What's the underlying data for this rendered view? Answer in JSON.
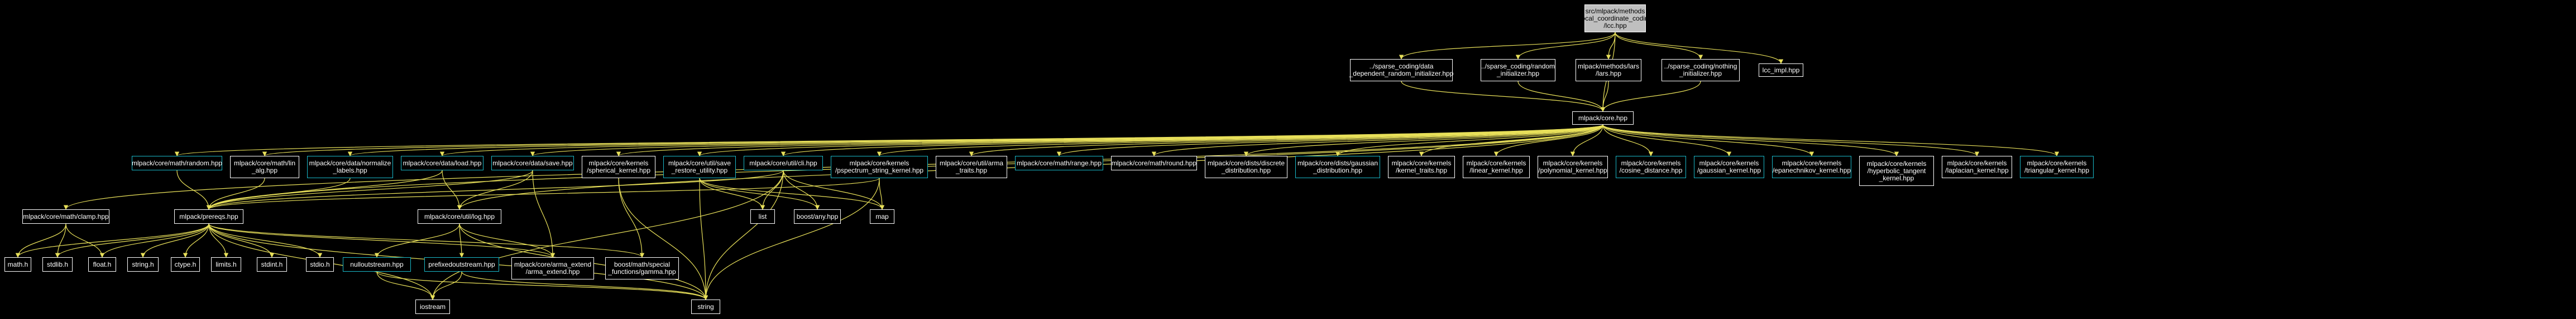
{
  "diagram": {
    "edge_color": "#e8e05a",
    "nodes": [
      {
        "id": "root",
        "label": "src/mlpack/methods\n/local_coordinate_coding\n/lcc.hpp",
        "style": "root"
      },
      {
        "id": "sc_data",
        "label": "../sparse_coding/data\n_dependent_random_initializer.hpp",
        "style": "white"
      },
      {
        "id": "sc_random",
        "label": "../sparse_coding/random\n_initializer.hpp",
        "style": "white"
      },
      {
        "id": "lars",
        "label": "mlpack/methods/lars\n/lars.hpp",
        "style": "white"
      },
      {
        "id": "sc_nothing",
        "label": "../sparse_coding/nothing\n_initializer.hpp",
        "style": "white"
      },
      {
        "id": "lcc_impl",
        "label": "lcc_impl.hpp",
        "style": "white"
      },
      {
        "id": "core",
        "label": "mlpack/core.hpp",
        "style": "white"
      },
      {
        "id": "random",
        "label": "mlpack/core/math/random.hpp",
        "style": "cyan"
      },
      {
        "id": "lin_alg",
        "label": "mlpack/core/math/lin\n_alg.hpp",
        "style": "white"
      },
      {
        "id": "normalize",
        "label": "mlpack/core/data/normalize\n_labels.hpp",
        "style": "cyan"
      },
      {
        "id": "load",
        "label": "mlpack/core/data/load.hpp",
        "style": "cyan"
      },
      {
        "id": "save",
        "label": "mlpack/core/data/save.hpp",
        "style": "cyan"
      },
      {
        "id": "spherical",
        "label": "mlpack/core/kernels\n/spherical_kernel.hpp",
        "style": "white"
      },
      {
        "id": "restore",
        "label": "mlpack/core/util/save\n_restore_utility.hpp",
        "style": "cyan"
      },
      {
        "id": "cli",
        "label": "mlpack/core/util/cli.hpp",
        "style": "cyan"
      },
      {
        "id": "pspectrum",
        "label": "mlpack/core/kernels\n/pspectrum_string_kernel.hpp",
        "style": "cyan"
      },
      {
        "id": "arma_traits",
        "label": "mlpack/core/util/arma\n_traits.hpp",
        "style": "white"
      },
      {
        "id": "range",
        "label": "mlpack/core/math/range.hpp",
        "style": "cyan"
      },
      {
        "id": "round",
        "label": "mlpack/core/math/round.hpp",
        "style": "white"
      },
      {
        "id": "discrete",
        "label": "mlpack/core/dists/discrete\n_distribution.hpp",
        "style": "white"
      },
      {
        "id": "gaussian_dist",
        "label": "mlpack/core/dists/gaussian\n_distribution.hpp",
        "style": "cyan"
      },
      {
        "id": "kernel_traits",
        "label": "mlpack/core/kernels\n/kernel_traits.hpp",
        "style": "white"
      },
      {
        "id": "linear",
        "label": "mlpack/core/kernels\n/linear_kernel.hpp",
        "style": "white"
      },
      {
        "id": "polynomial",
        "label": "mlpack/core/kernels\n/polynomial_kernel.hpp",
        "style": "white"
      },
      {
        "id": "cosine",
        "label": "mlpack/core/kernels\n/cosine_distance.hpp",
        "style": "cyan"
      },
      {
        "id": "gaussian_kernel",
        "label": "mlpack/core/kernels\n/gaussian_kernel.hpp",
        "style": "cyan"
      },
      {
        "id": "epanechnikov",
        "label": "mlpack/core/kernels\n/epanechnikov_kernel.hpp",
        "style": "cyan"
      },
      {
        "id": "tangent",
        "label": "mlpack/core/kernels\n/hyperbolic_tangent\n_kernel.hpp",
        "style": "white"
      },
      {
        "id": "laplacian",
        "label": "mlpack/core/kernels\n/laplacian_kernel.hpp",
        "style": "white"
      },
      {
        "id": "triangular",
        "label": "mlpack/core/kernels\n/triangular_kernel.hpp",
        "style": "cyan"
      },
      {
        "id": "clamp",
        "label": "mlpack/core/math/clamp.hpp",
        "style": "white"
      },
      {
        "id": "prereqs",
        "label": "mlpack/prereqs.hpp",
        "style": "white"
      },
      {
        "id": "log",
        "label": "mlpack/core/util/log.hpp",
        "style": "white"
      },
      {
        "id": "list",
        "label": "list",
        "style": "white"
      },
      {
        "id": "boost_any",
        "label": "boost/any.hpp",
        "style": "white"
      },
      {
        "id": "map",
        "label": "map",
        "style": "white"
      },
      {
        "id": "math_h",
        "label": "math.h",
        "style": "white"
      },
      {
        "id": "stdlib_h",
        "label": "stdlib.h",
        "style": "white"
      },
      {
        "id": "float_h",
        "label": "float.h",
        "style": "white"
      },
      {
        "id": "string_h",
        "label": "string.h",
        "style": "white"
      },
      {
        "id": "ctype_h",
        "label": "ctype.h",
        "style": "white"
      },
      {
        "id": "limits_h",
        "label": "limits.h",
        "style": "white"
      },
      {
        "id": "stdint_h",
        "label": "stdint.h",
        "style": "white"
      },
      {
        "id": "stdio_h",
        "label": "stdio.h",
        "style": "white"
      },
      {
        "id": "arma_extend",
        "label": "mlpack/core/arma_extend\n/arma_extend.hpp",
        "style": "white"
      },
      {
        "id": "boost_gamma",
        "label": "boost/math/special\n_functions/gamma.hpp",
        "style": "white"
      },
      {
        "id": "nulloutstream",
        "label": "nulloutstream.hpp",
        "style": "cyan"
      },
      {
        "id": "prefixedoutstream",
        "label": "prefixedoutstream.hpp",
        "style": "cyan"
      },
      {
        "id": "iostream",
        "label": "iostream",
        "style": "white"
      },
      {
        "id": "string",
        "label": "string",
        "style": "white"
      }
    ],
    "edges": [
      [
        "root",
        "sc_data"
      ],
      [
        "root",
        "sc_random"
      ],
      [
        "root",
        "lars"
      ],
      [
        "root",
        "sc_nothing"
      ],
      [
        "root",
        "lcc_impl"
      ],
      [
        "root",
        "core"
      ],
      [
        "sc_data",
        "core"
      ],
      [
        "sc_random",
        "core"
      ],
      [
        "lars",
        "core"
      ],
      [
        "sc_nothing",
        "core"
      ],
      [
        "core",
        "clamp"
      ],
      [
        "core",
        "random"
      ],
      [
        "core",
        "lin_alg"
      ],
      [
        "core",
        "normalize"
      ],
      [
        "core",
        "load"
      ],
      [
        "core",
        "save"
      ],
      [
        "core",
        "spherical"
      ],
      [
        "core",
        "restore"
      ],
      [
        "core",
        "cli"
      ],
      [
        "core",
        "pspectrum"
      ],
      [
        "core",
        "arma_traits"
      ],
      [
        "core",
        "range"
      ],
      [
        "core",
        "round"
      ],
      [
        "core",
        "discrete"
      ],
      [
        "core",
        "gaussian_dist"
      ],
      [
        "core",
        "kernel_traits"
      ],
      [
        "core",
        "linear"
      ],
      [
        "core",
        "polynomial"
      ],
      [
        "core",
        "cosine"
      ],
      [
        "core",
        "gaussian_kernel"
      ],
      [
        "core",
        "epanechnikov"
      ],
      [
        "core",
        "tangent"
      ],
      [
        "core",
        "laplacian"
      ],
      [
        "core",
        "triangular"
      ],
      [
        "core",
        "prereqs"
      ],
      [
        "core",
        "log"
      ],
      [
        "random",
        "prereqs"
      ],
      [
        "lin_alg",
        "prereqs"
      ],
      [
        "normalize",
        "prereqs"
      ],
      [
        "load",
        "prereqs"
      ],
      [
        "load",
        "log"
      ],
      [
        "save",
        "prereqs"
      ],
      [
        "save",
        "log"
      ],
      [
        "save",
        "arma_extend"
      ],
      [
        "spherical",
        "boost_gamma"
      ],
      [
        "spherical",
        "string"
      ],
      [
        "restore",
        "list"
      ],
      [
        "restore",
        "map"
      ],
      [
        "restore",
        "string"
      ],
      [
        "restore",
        "boost_any"
      ],
      [
        "cli",
        "list"
      ],
      [
        "cli",
        "map"
      ],
      [
        "cli",
        "boost_any"
      ],
      [
        "cli",
        "string"
      ],
      [
        "cli",
        "iostream"
      ],
      [
        "cli",
        "prereqs"
      ],
      [
        "pspectrum",
        "map"
      ],
      [
        "pspectrum",
        "string"
      ],
      [
        "pspectrum",
        "prereqs"
      ],
      [
        "clamp",
        "math_h"
      ],
      [
        "clamp",
        "stdlib_h"
      ],
      [
        "clamp",
        "float_h"
      ],
      [
        "prereqs",
        "math_h"
      ],
      [
        "prereqs",
        "stdlib_h"
      ],
      [
        "prereqs",
        "float_h"
      ],
      [
        "prereqs",
        "string_h"
      ],
      [
        "prereqs",
        "ctype_h"
      ],
      [
        "prereqs",
        "limits_h"
      ],
      [
        "prereqs",
        "stdint_h"
      ],
      [
        "prereqs",
        "stdio_h"
      ],
      [
        "prereqs",
        "arma_extend"
      ],
      [
        "prereqs",
        "boost_gamma"
      ],
      [
        "prereqs",
        "iostream"
      ],
      [
        "prereqs",
        "string"
      ],
      [
        "log",
        "nulloutstream"
      ],
      [
        "log",
        "prefixedoutstream"
      ],
      [
        "log",
        "string"
      ],
      [
        "log",
        "arma_extend"
      ],
      [
        "nulloutstream",
        "iostream"
      ],
      [
        "nulloutstream",
        "string"
      ],
      [
        "prefixedoutstream",
        "iostream"
      ],
      [
        "prefixedoutstream",
        "string"
      ]
    ]
  }
}
